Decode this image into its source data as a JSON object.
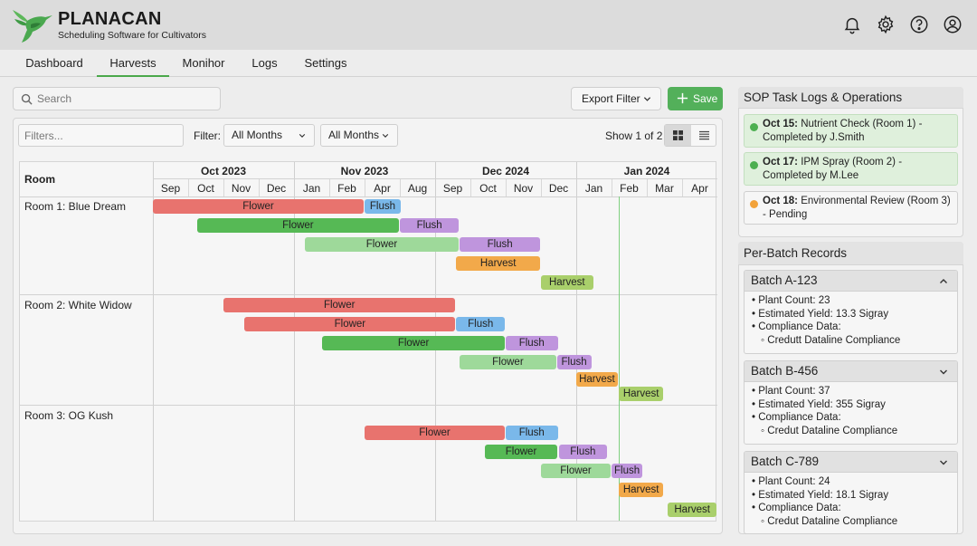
{
  "app": {
    "brand": "PLANACAN",
    "tagline": "Scheduling Software for Cultivators",
    "icons": [
      "bell-icon",
      "gear-icon",
      "help-icon",
      "user-icon"
    ]
  },
  "nav": {
    "tabs": [
      "Dashboard",
      "Harvests",
      "Monihor",
      "Logs",
      "Settings"
    ],
    "active": "Harvests"
  },
  "toolbar": {
    "search_placeholder": "Search",
    "export_label": "Export Filter",
    "save_label": "Save",
    "filters_placeholder": "Filters...",
    "filter_label": "Filter:",
    "month_select_1": "All Months",
    "month_select_2": "All Months",
    "pagination": "Show 1 of 2"
  },
  "gantt": {
    "room_header": "Room",
    "years": [
      "Oct 2023",
      "Nov 2023",
      "Dec 2024",
      "Jan 2024"
    ],
    "months": [
      "Sep",
      "Oct",
      "Nov",
      "Dec",
      "Jan",
      "Feb",
      "Apr",
      "Aug",
      "Sep",
      "Oct",
      "Nov",
      "Dec",
      "Jan",
      "Feb",
      "Mar",
      "Apr"
    ],
    "rooms": [
      "Room 1: Blue Dream",
      "Room 2: White Widow",
      "Room 3: OG Kush"
    ],
    "bars": [
      {
        "row": 0,
        "label": "Flower",
        "phase": "flower-red",
        "start": 0,
        "end": 6.0
      },
      {
        "row": 0,
        "label": "Flush",
        "phase": "flush-blue",
        "start": 6.0,
        "end": 7.05
      },
      {
        "row": 1,
        "label": "Flower",
        "phase": "flower-green",
        "start": 1.25,
        "end": 7.0
      },
      {
        "row": 1,
        "label": "Flush",
        "phase": "flush-purple",
        "start": 7.0,
        "end": 8.7
      },
      {
        "row": 2,
        "label": "Flower",
        "phase": "flower-lightgreen",
        "start": 4.3,
        "end": 8.7
      },
      {
        "row": 2,
        "label": "Flush",
        "phase": "flush-purple",
        "start": 8.7,
        "end": 11.0
      },
      {
        "row": 3,
        "label": "Harvest",
        "phase": "harvest-orange",
        "start": 8.6,
        "end": 11.0
      },
      {
        "row": 4,
        "label": "Harvest",
        "phase": "harvest-lime",
        "start": 11.0,
        "end": 12.5
      },
      {
        "row": 5,
        "label": "Flower",
        "phase": "flower-red",
        "start": 2.0,
        "end": 8.6
      },
      {
        "row": 6,
        "label": "Flower",
        "phase": "flower-red",
        "start": 2.6,
        "end": 8.6
      },
      {
        "row": 6,
        "label": "Flush",
        "phase": "flush-blue",
        "start": 8.6,
        "end": 10.0
      },
      {
        "row": 7,
        "label": "Flower",
        "phase": "flower-green",
        "start": 4.8,
        "end": 10.0
      },
      {
        "row": 7,
        "label": "Flush",
        "phase": "flush-purple",
        "start": 10.0,
        "end": 11.5
      },
      {
        "row": 8,
        "label": "Flower",
        "phase": "flower-lightgreen",
        "start": 8.7,
        "end": 11.45
      },
      {
        "row": 8,
        "label": "Flush",
        "phase": "flush-purple",
        "start": 11.45,
        "end": 12.45
      },
      {
        "row": 9,
        "label": "Harvest",
        "phase": "harvest-orange",
        "start": 12.0,
        "end": 13.2
      },
      {
        "row": 10,
        "label": "Harvest",
        "phase": "harvest-lime",
        "start": 13.2,
        "end": 14.5
      },
      {
        "row": 11,
        "label": "Flower",
        "phase": "flower-red",
        "start": 6.0,
        "end": 10.0
      },
      {
        "row": 11,
        "label": "Flush",
        "phase": "flush-blue",
        "start": 10.0,
        "end": 11.5
      },
      {
        "row": 12,
        "label": "Flower",
        "phase": "flower-green",
        "start": 9.4,
        "end": 11.5
      },
      {
        "row": 12,
        "label": "Flush",
        "phase": "flush-purple",
        "start": 11.5,
        "end": 12.9
      },
      {
        "row": 13,
        "label": "Flower",
        "phase": "flower-lightgreen",
        "start": 11.0,
        "end": 13.0
      },
      {
        "row": 13,
        "label": "Flush",
        "phase": "flush-purple",
        "start": 13.0,
        "end": 13.9
      },
      {
        "row": 14,
        "label": "Harvest",
        "phase": "harvest-orange",
        "start": 13.2,
        "end": 14.5
      },
      {
        "row": 15,
        "label": "Harvest",
        "phase": "harvest-lime",
        "start": 14.6,
        "end": 16.0
      }
    ],
    "today_month": 13.2
  },
  "colors": {
    "flower-red": "#e8736e",
    "flower-green": "#56b955",
    "flower-lightgreen": "#9ed99a",
    "flush-blue": "#7ab8ea",
    "flush-purple": "#bf95dd",
    "harvest-orange": "#f2a94a",
    "harvest-lime": "#a9cf6b",
    "accent": "#53b05a"
  },
  "sop": {
    "title": "SOP Task Logs & Operations",
    "tasks": [
      {
        "date": "Oct 15:",
        "text": " Nutrient Check (Room 1) - Completed by J.Smith",
        "status": "done"
      },
      {
        "date": "Oct 17:",
        "text": " IPM Spray (Room 2) - Completed by M.Lee",
        "status": "done"
      },
      {
        "date": "Oct 18:",
        "text": " Environmental Review (Room 3) - Pending",
        "status": "pending"
      }
    ]
  },
  "records": {
    "title": "Per-Batch Records",
    "batches": [
      {
        "name": "Batch A-123",
        "expanded": true,
        "plant_count": "Plant Count: 23",
        "yield": "Estimated Yield: 13.3 Sigray",
        "compliance": "Compliance Data:",
        "compliance_item": "Credutt Dataline Compliance"
      },
      {
        "name": "Batch B-456",
        "expanded": false,
        "plant_count": "Plant Count: 37",
        "yield": "Estimated Yield: 355 Sigray",
        "compliance": "Compliance Data:",
        "compliance_item": "Credut Dataline Compliance"
      },
      {
        "name": "Batch C-789",
        "expanded": false,
        "plant_count": "Plant Count: 24",
        "yield": "Estimated Yield: 18.1 Sigray",
        "compliance": "Compliance Data:",
        "compliance_item": "Credut Dataline Compliance"
      }
    ]
  }
}
